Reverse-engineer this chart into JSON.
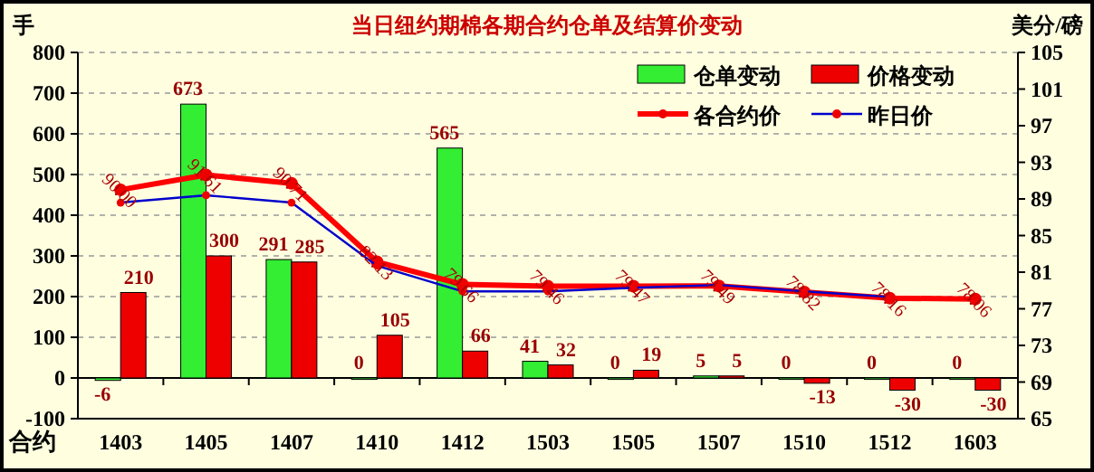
{
  "chart_data": {
    "type": "bar",
    "title": "当日纽约期棉各期合约仓单及结算价变动",
    "ylabel": "手",
    "y2label": "美分/磅",
    "xlabel": "合约",
    "categories": [
      "1403",
      "1405",
      "1407",
      "1410",
      "1412",
      "1503",
      "1505",
      "1507",
      "1510",
      "1512",
      "1603"
    ],
    "series": [
      {
        "name": "仓单变动",
        "color": "#33ee33",
        "values": [
          -6,
          673,
          291,
          0,
          565,
          41,
          0,
          5,
          0,
          0,
          0
        ],
        "value_labels": [
          "-6",
          "673",
          "291",
          "0",
          "565",
          "41",
          "0",
          "5",
          "0",
          "0",
          "0"
        ]
      },
      {
        "name": "价格变动",
        "color": "#ee0000",
        "values": [
          210,
          300,
          285,
          105,
          66,
          32,
          19,
          5,
          -13,
          -30,
          -30
        ],
        "value_labels": [
          "210",
          "300",
          "285",
          "105",
          "66",
          "32",
          "19",
          "5",
          "-13",
          "-30",
          "-30"
        ]
      },
      {
        "name": "各合约价",
        "type": "line",
        "axis": "y2",
        "color": "#ff0000",
        "marker": "circle",
        "values": [
          90.0,
          91.61,
          90.71,
          82.13,
          79.66,
          79.46,
          79.47,
          79.49,
          78.82,
          78.16,
          78.06
        ],
        "value_labels": [
          "90.00",
          "91.61",
          "90.71",
          "82.13",
          "79.66",
          "79.46",
          "79.47",
          "79.49",
          "78.82",
          "78.16",
          "78.06"
        ]
      },
      {
        "name": "昨日价",
        "type": "line",
        "axis": "y2",
        "color": "#0000cc",
        "marker": "circle",
        "values": [
          88.6,
          89.4,
          88.6,
          81.7,
          78.9,
          78.9,
          79.3,
          79.6,
          78.9,
          78.3,
          null
        ]
      }
    ],
    "ylim": [
      -100,
      800
    ],
    "yticks": [
      -100,
      0,
      100,
      200,
      300,
      400,
      500,
      600,
      700,
      800
    ],
    "y2lim": [
      65,
      105
    ],
    "y2ticks": [
      65,
      69,
      73,
      77,
      81,
      85,
      89,
      93,
      97,
      101,
      105
    ],
    "grid": "y",
    "legend": "top right",
    "line_style": "solid"
  }
}
